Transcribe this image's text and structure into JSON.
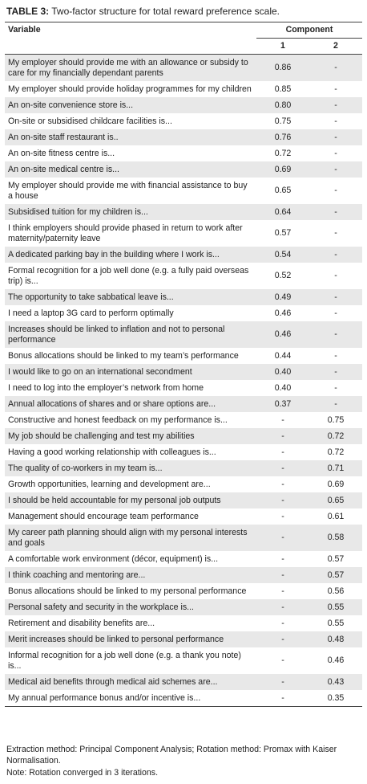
{
  "header": {
    "label": "TABLE 3:",
    "title": "Two-factor structure for total reward preference scale."
  },
  "table": {
    "columns": [
      "Variable",
      "1",
      "2"
    ],
    "group_header": "Component",
    "rows": [
      [
        "My employer should provide me with an allowance or subsidy to care for my financially dependant parents",
        "0.86",
        "-"
      ],
      [
        "My employer should provide holiday programmes for my children",
        "0.85",
        "-"
      ],
      [
        "An on-site convenience store is...",
        "0.80",
        "-"
      ],
      [
        "On-site or subsidised childcare facilities is...",
        "0.75",
        "-"
      ],
      [
        "An on-site staff restaurant is..",
        "0.76",
        "-"
      ],
      [
        "An on-site fitness centre is...",
        "0.72",
        "-"
      ],
      [
        "An on-site medical centre is...",
        "0.69",
        "-"
      ],
      [
        "My employer should provide me with financial assistance to buy a house",
        "0.65",
        "-"
      ],
      [
        "Subsidised tuition for my children is...",
        "0.64",
        "-"
      ],
      [
        "I think employers should provide phased in return to work after maternity/paternity leave",
        "0.57",
        "-"
      ],
      [
        "A dedicated parking bay in the building where I work is...",
        "0.54",
        "-"
      ],
      [
        "Formal recognition for a job well done (e.g. a fully paid overseas trip) is...",
        "0.52",
        "-"
      ],
      [
        "The opportunity to take sabbatical leave is...",
        "0.49",
        "-"
      ],
      [
        "I need a laptop 3G card to perform optimally",
        "0.46",
        "-"
      ],
      [
        "Increases should be linked to inflation and not to personal performance",
        "0.46",
        "-"
      ],
      [
        "Bonus allocations should be linked to my team’s performance",
        "0.44",
        "-"
      ],
      [
        "I would like to go on an international secondment",
        "0.40",
        "-"
      ],
      [
        "I need to log into the employer’s network from home",
        "0.40",
        "-"
      ],
      [
        "Annual allocations of shares and or share options are...",
        "0.37",
        "-"
      ],
      [
        "Constructive and honest feedback on my performance is...",
        "-",
        "0.75"
      ],
      [
        "My job should be challenging and test my abilities",
        "-",
        "0.72"
      ],
      [
        "Having a good working relationship with colleagues is...",
        "-",
        "0.72"
      ],
      [
        "The quality of co-workers in my team is...",
        "-",
        "0.71"
      ],
      [
        "Growth opportunities, learning and development are...",
        "-",
        "0.69"
      ],
      [
        "I should be held accountable for my personal job outputs",
        "-",
        "0.65"
      ],
      [
        "Management should encourage team performance",
        "-",
        "0.61"
      ],
      [
        "My career path planning should align with my personal interests and goals",
        "-",
        "0.58"
      ],
      [
        "A comfortable work environment (décor, equipment) is...",
        "-",
        "0.57"
      ],
      [
        "I think coaching and mentoring are...",
        "-",
        "0.57"
      ],
      [
        "Bonus allocations should be linked to my personal performance",
        "-",
        "0.56"
      ],
      [
        "Personal safety and security in the workplace is...",
        "-",
        "0.55"
      ],
      [
        "Retirement and disability benefits are...",
        "-",
        "0.55"
      ],
      [
        "Merit increases should be linked to personal performance",
        "-",
        "0.48"
      ],
      [
        "Informal recognition for a job well done (e.g. a thank you note) is...",
        "-",
        "0.46"
      ],
      [
        "Medical aid benefits through medical aid schemes are...",
        "-",
        "0.43"
      ],
      [
        "My annual performance bonus and/or incentive is...",
        "-",
        "0.35"
      ]
    ]
  },
  "footer": {
    "notes": [
      "Extraction method: Principal Component Analysis; Rotation method: Promax with Kaiser Normalisation.",
      "Note: Rotation converged in 3 iterations."
    ]
  }
}
